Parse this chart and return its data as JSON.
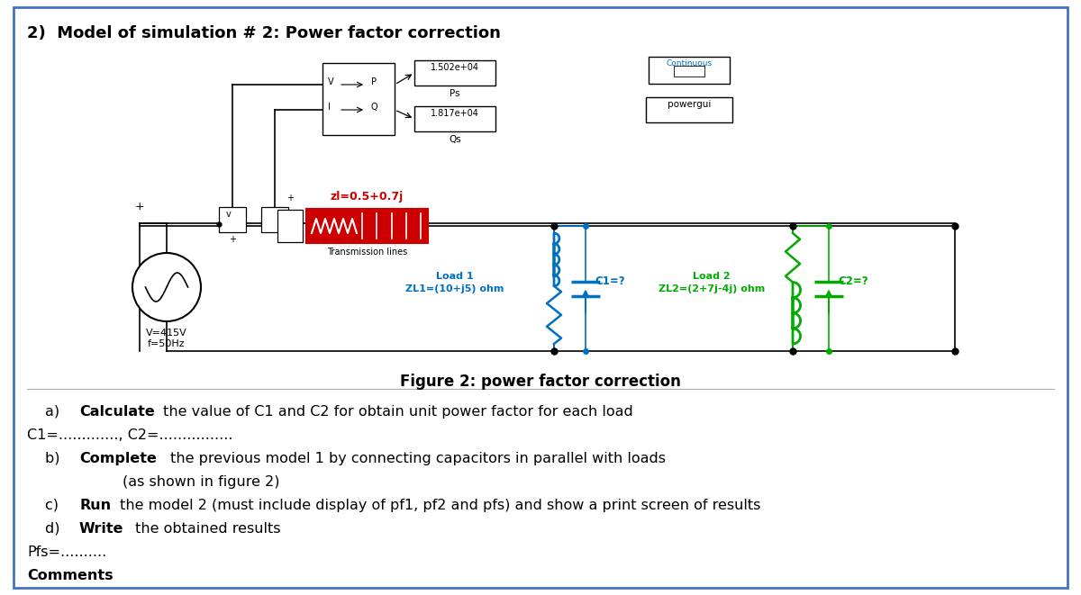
{
  "title": "2)  Model of simulation # 2: Power factor correction",
  "figure_caption": "Figure 2: power factor correction",
  "bg_color": "#ffffff",
  "border_color": "#4472c4",
  "ps_value": "1.502e+04",
  "ps_label": "Ps",
  "qs_value": "1.817e+04",
  "qs_label": "Qs",
  "continuous_text": "Continuous",
  "powergui_text": "powergui",
  "zl_label": "zl=0.5+0.7j",
  "tl_label": "Transmission lines",
  "vsource_label1": "V=415V",
  "vsource_label2": "f=50Hz",
  "load1_line1": "Load 1",
  "load1_line2": "ZL1=(10+j5) ohm",
  "load2_line1": "Load 2",
  "load2_line2": "ZL2=(2+7j-4j) ohm",
  "c1_label": "C1=?",
  "c2_label": "C2=?",
  "text_a_prefix": "a)  ",
  "text_a_bold": "Calculate",
  "text_a_rest": " the value of C1 and C2 for obtain unit power factor for each load",
  "text_c1c2": "C1=............., C2=................",
  "text_b_prefix": "b)  ",
  "text_b_bold": "Complete",
  "text_b_rest": " the previous model 1 by connecting capacitors in parallel with loads",
  "text_b2": "        (as shown in figure 2)",
  "text_c_prefix": "c)  ",
  "text_c_bold": "Run",
  "text_c_rest": " the model 2 (must include display of pf1, pf2 and pfs) and show a print screen of results",
  "text_d_prefix": "d)  ",
  "text_d_bold": "Write",
  "text_d_rest": " the obtained results",
  "text_pfs": "Pfs=..........",
  "text_comments": "Comments",
  "blue_color": "#0070C0",
  "green_color": "#00AA00",
  "red_color": "#CC0000"
}
